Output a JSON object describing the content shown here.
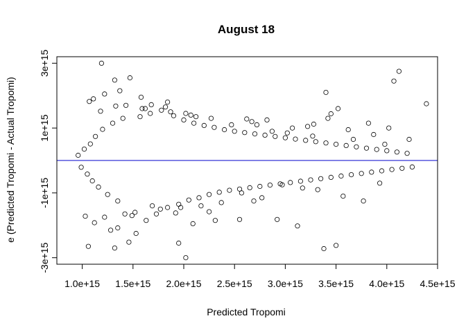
{
  "chart_data": {
    "type": "scatter",
    "title": "August 18",
    "xlabel": "Predicted Tropomi",
    "ylabel": "e (Predicted Tropomi - Actual Tropomi)",
    "xlim": [
      750000000000000.0,
      4500000000000000.0
    ],
    "ylim": [
      -3200000000000000.0,
      3200000000000000.0
    ],
    "x_ticks": [
      1000000000000000.0,
      1500000000000000.0,
      2000000000000000.0,
      2500000000000000.0,
      3000000000000000.0,
      3500000000000000.0,
      4000000000000000.0,
      4500000000000000.0
    ],
    "x_tick_labels": [
      "1.0e+15",
      "1.5e+15",
      "2.0e+15",
      "2.5e+15",
      "3.0e+15",
      "3.5e+15",
      "4.0e+15",
      "4.5e+15"
    ],
    "y_ticks": [
      -3000000000000000.0,
      -1000000000000000.0,
      1000000000000000.0,
      3000000000000000.0
    ],
    "y_tick_labels": [
      "-3e+15",
      "-1e+15",
      "1e+15",
      "3e+15"
    ],
    "reference_line": {
      "y": 0,
      "color": "#0000cc"
    },
    "grid": false,
    "point_style": "open-circle",
    "x": [
      960000000000000.0,
      990000000000000.0,
      1020000000000000.0,
      1050000000000000.0,
      1080000000000000.0,
      1100000000000000.0,
      1130000000000000.0,
      1160000000000000.0,
      1200000000000000.0,
      1250000000000000.0,
      1300000000000000.0,
      1350000000000000.0,
      1400000000000000.0,
      1180000000000000.0,
      1030000000000000.0,
      1070000000000000.0,
      1120000000000000.0,
      1220000000000000.0,
      1280000000000000.0,
      1330000000000000.0,
      1190000000000000.0,
      1320000000000000.0,
      1470000000000000.0,
      1530000000000000.0,
      1580000000000000.0,
      1630000000000000.0,
      1680000000000000.0,
      1730000000000000.0,
      1780000000000000.0,
      1840000000000000.0,
      1900000000000000.0,
      1950000000000000.0,
      2000000000000000.0,
      2050000000000000.0,
      2100000000000000.0,
      2150000000000000.0,
      2200000000000000.0,
      2250000000000000.0,
      2300000000000000.0,
      2350000000000000.0,
      2400000000000000.0,
      2450000000000000.0,
      2500000000000000.0,
      2550000000000000.0,
      2600000000000000.0,
      2650000000000000.0,
      2700000000000000.0,
      2750000000000000.0,
      2800000000000000.0,
      2850000000000000.0,
      2900000000000000.0,
      2950000000000000.0,
      3000000000000000.0,
      3050000000000000.0,
      3100000000000000.0,
      3150000000000000.0,
      3200000000000000.0,
      3250000000000000.0,
      3300000000000000.0,
      3350000000000000.0,
      3400000000000000.0,
      3450000000000000.0,
      3500000000000000.0,
      3550000000000000.0,
      3600000000000000.0,
      3650000000000000.0,
      3700000000000000.0,
      3750000000000000.0,
      3800000000000000.0,
      3850000000000000.0,
      3900000000000000.0,
      3950000000000000.0,
      4000000000000000.0,
      4050000000000000.0,
      4100000000000000.0,
      4150000000000000.0,
      4200000000000000.0,
      4250000000000000.0,
      4390000000000000.0,
      3280000000000000.0,
      3520000000000000.0,
      3450000000000000.0,
      3400000000000000.0,
      3380000000000000.0,
      3500000000000000.0,
      3120000000000000.0,
      2920000000000000.0,
      1220000000000000.0,
      1420000000000000.0,
      1350000000000000.0,
      1460000000000000.0,
      2250000000000000.0,
      2550000000000000.0,
      1950000000000000.0,
      2020000000000000.0,
      1920000000000000.0,
      2090000000000000.0,
      1370000000000000.0,
      1320000000000000.0,
      1060000000000000.0,
      1110000000000000.0,
      1570000000000000.0,
      1670000000000000.0,
      1820000000000000.0,
      2120000000000000.0,
      2620000000000000.0,
      2720000000000000.0,
      2820000000000000.0,
      3020000000000000.0,
      3220000000000000.0,
      3420000000000000.0,
      3620000000000000.0,
      3820000000000000.0,
      4020000000000000.0,
      3980000000000000.0,
      3930000000000000.0,
      3870000000000000.0,
      3770000000000000.0,
      3670000000000000.0,
      3570000000000000.0,
      3320000000000000.0,
      3270000000000000.0,
      3170000000000000.0,
      3070000000000000.0,
      2970000000000000.0,
      2870000000000000.0,
      2770000000000000.0,
      2670000000000000.0,
      2570000000000000.0,
      2470000000000000.0,
      2370000000000000.0,
      2270000000000000.0,
      2170000000000000.0,
      2070000000000000.0,
      1970000000000000.0,
      1870000000000000.0,
      1770000000000000.0,
      1620000000000000.0,
      1520000000000000.0,
      1430000000000000.0,
      4070000000000000.0,
      4120000000000000.0,
      4220000000000000.0,
      1690000000000000.0,
      1590000000000000.0,
      1490000000000000.0,
      1840000000000000.0,
      2020000000000000.0,
      2310000000000000.0,
      2690000000000000.0
    ],
    "y": [
      160000000000000.0,
      -210000000000000.0,
      350000000000000.0,
      -420000000000000.0,
      510000000000000.0,
      -630000000000000.0,
      740000000000000.0,
      -820000000000000.0,
      960000000000000.0,
      -1050000000000000.0,
      1150000000000000.0,
      -1250000000000000.0,
      1300000000000000.0,
      1520000000000000.0,
      -1720000000000000.0,
      1820000000000000.0,
      -1920000000000000.0,
      2050000000000000.0,
      -2150000000000000.0,
      1680000000000000.0,
      3000000000000000.0,
      2480000000000000.0,
      2550000000000000.0,
      -2250000000000000.0,
      1950000000000000.0,
      -1850000000000000.0,
      1720000000000000.0,
      -1650000000000000.0,
      1550000000000000.0,
      -1450000000000000.0,
      1380000000000000.0,
      -1350000000000000.0,
      1250000000000000.0,
      -1220000000000000.0,
      1150000000000000.0,
      -1150000000000000.0,
      1080000000000000.0,
      -1050000000000000.0,
      1020000000000000.0,
      -980000000000000.0,
      950000000000000.0,
      -920000000000000.0,
      900000000000000.0,
      -880000000000000.0,
      860000000000000.0,
      -840000000000000.0,
      820000000000000.0,
      -800000000000000.0,
      780000000000000.0,
      -760000000000000.0,
      740000000000000.0,
      -720000000000000.0,
      700000000000000.0,
      -680000000000000.0,
      660000000000000.0,
      -640000000000000.0,
      620000000000000.0,
      -600000000000000.0,
      580000000000000.0,
      -560000000000000.0,
      540000000000000.0,
      -520000000000000.0,
      500000000000000.0,
      -480000000000000.0,
      460000000000000.0,
      -440000000000000.0,
      420000000000000.0,
      -400000000000000.0,
      380000000000000.0,
      -360000000000000.0,
      340000000000000.0,
      -320000000000000.0,
      300000000000000.0,
      -280000000000000.0,
      260000000000000.0,
      -240000000000000.0,
      220000000000000.0,
      -200000000000000.0,
      1750000000000000.0,
      1120000000000000.0,
      1600000000000000.0,
      1440000000000000.0,
      2100000000000000.0,
      -2720000000000000.0,
      -2620000000000000.0,
      -2020000000000000.0,
      -1820000000000000.0,
      -1750000000000000.0,
      -1650000000000000.0,
      -2080000000000000.0,
      -2520000000000000.0,
      -1580000000000000.0,
      -1820000000000000.0,
      -2550000000000000.0,
      -3000000000000000.0,
      -1620000000000000.0,
      -1950000000000000.0,
      2150000000000000.0,
      -2700000000000000.0,
      -2650000000000000.0,
      1900000000000000.0,
      1350000000000000.0,
      1450000000000000.0,
      1650000000000000.0,
      1350000000000000.0,
      1280000000000000.0,
      1100000000000000.0,
      1250000000000000.0,
      850000000000000.0,
      1050000000000000.0,
      1300000000000000.0,
      950000000000000.0,
      1150000000000000.0,
      1000000000000000.0,
      500000000000000.0,
      -700000000000000.0,
      800000000000000.0,
      -1250000000000000.0,
      650000000000000.0,
      -1100000000000000.0,
      -900000000000000.0,
      750000000000000.0,
      -850000000000000.0,
      1000000000000000.0,
      -750000000000000.0,
      900000000000000.0,
      -1150000000000000.0,
      1200000000000000.0,
      -1000000000000000.0,
      1100000000000000.0,
      -1300000000000000.0,
      1300000000000000.0,
      -1400000000000000.0,
      1400000000000000.0,
      -1450000000000000.0,
      1500000000000000.0,
      -1500000000000000.0,
      1600000000000000.0,
      -1600000000000000.0,
      1700000000000000.0,
      2450000000000000.0,
      2750000000000000.0,
      650000000000000.0,
      -1400000000000000.0,
      1600000000000000.0,
      -1700000000000000.0,
      1800000000000000.0,
      1450000000000000.0,
      -1850000000000000.0,
      -1250000000000000.0
    ]
  }
}
